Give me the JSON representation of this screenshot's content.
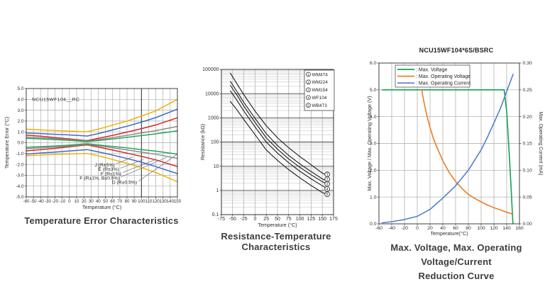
{
  "page": {
    "background": "#ffffff"
  },
  "chart_data": [
    {
      "id": "temp-error",
      "type": "line",
      "caption": "Temperature Error Characteristics",
      "inplot_label": "NCU15WF104__RC",
      "xlabel": "Temperature (°C)",
      "ylabel": "Temperature Error (°C)",
      "xlim": [
        -60,
        150
      ],
      "ylim": [
        -5,
        5
      ],
      "grid": true,
      "legend_position": "in-plot labels with leader lines",
      "xticks": [
        -60,
        -50,
        -40,
        -30,
        -20,
        -10,
        0,
        10,
        20,
        30,
        40,
        50,
        60,
        70,
        80,
        90,
        100,
        110,
        120,
        130,
        140,
        150
      ],
      "xtick_labels": [
        "-60",
        "-50",
        "-40",
        "-30",
        "-20",
        "-10",
        "0",
        "10",
        "20",
        "30",
        "40",
        "50",
        "60",
        "70",
        "80",
        "90",
        "100",
        "110",
        "120",
        "130",
        "140",
        "150"
      ],
      "yticks": [
        5,
        4,
        3,
        2,
        1,
        0,
        -1,
        -2,
        -3,
        -4,
        -5
      ],
      "ytick_labels": [
        "5.0",
        "4.0",
        "3.0",
        "2.0",
        "1.0",
        "0.0",
        "-1.0",
        "-2.0",
        "-3.0",
        "-4.0",
        "-5.0"
      ],
      "refline_x": 100,
      "series": [
        {
          "name": "J (R±5%)",
          "color": "#f3b200",
          "x": [
            -60,
            -40,
            -20,
            0,
            20,
            25,
            40,
            60,
            80,
            100,
            120,
            150
          ],
          "y_upper": [
            1.25,
            1.18,
            1.12,
            1.08,
            1.02,
            1.02,
            1.25,
            1.62,
            2.0,
            2.45,
            2.95,
            4.0
          ],
          "y_lower": [
            -1.2,
            -1.14,
            -1.08,
            -1.04,
            -1.0,
            -1.0,
            -1.2,
            -1.55,
            -1.9,
            -2.3,
            -2.75,
            -3.6
          ]
        },
        {
          "name": "E (R±3%)",
          "color": "#3e6bc9",
          "x": [
            -60,
            -40,
            -20,
            0,
            20,
            25,
            40,
            60,
            80,
            100,
            120,
            150
          ],
          "y_upper": [
            0.9,
            0.84,
            0.78,
            0.72,
            0.64,
            0.62,
            0.84,
            1.18,
            1.52,
            1.9,
            2.32,
            3.1
          ],
          "y_lower": [
            -1.05,
            -0.95,
            -0.86,
            -0.76,
            -0.66,
            -0.64,
            -0.84,
            -1.14,
            -1.46,
            -1.8,
            -2.2,
            -2.85
          ]
        },
        {
          "name": "F (R±1%)",
          "color": "#dc2323",
          "x": [
            -60,
            -40,
            -20,
            0,
            20,
            25,
            40,
            60,
            80,
            100,
            120,
            150
          ],
          "y_upper": [
            0.7,
            0.6,
            0.48,
            0.36,
            0.22,
            0.2,
            0.4,
            0.68,
            0.98,
            1.3,
            1.64,
            2.3
          ],
          "y_lower": [
            -0.75,
            -0.64,
            -0.52,
            -0.38,
            -0.23,
            -0.2,
            -0.4,
            -0.68,
            -0.96,
            -1.26,
            -1.58,
            -2.2
          ]
        },
        {
          "name": "F (R±1%, B±0.5%)",
          "color": "#8c8c8c",
          "x": [
            -60,
            -40,
            -20,
            0,
            20,
            25,
            40,
            60,
            80,
            100,
            120,
            150
          ],
          "y_upper": [
            0.52,
            0.46,
            0.38,
            0.3,
            0.17,
            0.15,
            0.28,
            0.48,
            0.68,
            0.9,
            1.12,
            1.5
          ],
          "y_lower": [
            -0.55,
            -0.48,
            -0.4,
            -0.3,
            -0.17,
            -0.15,
            -0.28,
            -0.48,
            -0.66,
            -0.86,
            -1.06,
            -1.45
          ]
        },
        {
          "name": "D (R±0.5%)",
          "color": "#27a45c",
          "x": [
            -60,
            -40,
            -20,
            0,
            20,
            25,
            40,
            60,
            80,
            100,
            120,
            150
          ],
          "y_upper": [
            0.4,
            0.35,
            0.29,
            0.22,
            0.12,
            0.1,
            0.2,
            0.34,
            0.5,
            0.66,
            0.82,
            1.1
          ],
          "y_lower": [
            -0.42,
            -0.36,
            -0.3,
            -0.22,
            -0.12,
            -0.1,
            -0.2,
            -0.34,
            -0.48,
            -0.64,
            -0.78,
            -1.05
          ]
        }
      ],
      "annotations": [
        {
          "text": "J (R±5%)",
          "label_x": 63,
          "label_y": -2.05,
          "leader": [
            [
              65,
              -1.95
            ],
            [
              88,
              -1.3
            ]
          ]
        },
        {
          "text": "E (R±3%)",
          "label_x": 69,
          "label_y": -2.45,
          "leader": [
            [
              71,
              -2.35
            ],
            [
              103,
              -1.55
            ]
          ]
        },
        {
          "text": "F (R±1%)",
          "label_x": 72,
          "label_y": -2.85,
          "leader": [
            [
              74,
              -2.75
            ],
            [
              120,
              -1.55
            ]
          ]
        },
        {
          "text": "F (R±1%, B±0.5%)",
          "label_x": 70,
          "label_y": -3.25,
          "leader": [
            [
              72,
              -3.15
            ],
            [
              135,
              -1.35
            ]
          ]
        },
        {
          "text": "D (R±0.5%)",
          "label_x": 94,
          "label_y": -3.65,
          "leader": [
            [
              96,
              -3.55
            ],
            [
              150,
              -1.05
            ]
          ]
        }
      ]
    },
    {
      "id": "resistance-temperature",
      "type": "line",
      "ylog": true,
      "caption": "Resistance-Temperature Characteristics",
      "xlabel": "Temperature (°C)",
      "ylabel": "Resistance (kΩ)",
      "xlim": [
        -75,
        175
      ],
      "ylim": [
        0.1,
        100000
      ],
      "grid": true,
      "legend_position": "top-right box",
      "xticks": [
        -75,
        -50,
        -25,
        0,
        25,
        50,
        75,
        100,
        125,
        150,
        175
      ],
      "xtick_labels": [
        "-75",
        "-50",
        "-25",
        "0",
        "25",
        "50",
        "75",
        "100",
        "125",
        "150",
        "175"
      ],
      "yticks": [
        100000,
        10000,
        1000,
        100,
        10,
        1,
        0.1
      ],
      "ytick_labels": [
        "100000",
        "10000",
        "1000",
        "100",
        "10",
        "1",
        "0.1"
      ],
      "line_color": "#1a1a1a",
      "legend": [
        {
          "num": "1",
          "label": "WM474"
        },
        {
          "num": "2",
          "label": "WM224"
        },
        {
          "num": "3",
          "label": "WM154"
        },
        {
          "num": "4",
          "label": "WF104"
        },
        {
          "num": "5",
          "label": "WB473"
        }
      ],
      "series": [
        {
          "name": "WM474",
          "num": "1",
          "x": [
            -55,
            -40,
            -25,
            0,
            25,
            50,
            75,
            100,
            125,
            150,
            155
          ],
          "y": [
            70000,
            25000,
            9000,
            1900,
            470,
            150,
            58,
            25,
            11.5,
            5.2,
            4.7
          ]
        },
        {
          "name": "WM224",
          "num": "2",
          "x": [
            -55,
            -40,
            -25,
            0,
            25,
            50,
            75,
            100,
            125,
            150,
            155
          ],
          "y": [
            32000,
            12000,
            4300,
            950,
            220,
            72,
            28,
            12.5,
            6.0,
            3.0,
            2.7
          ]
        },
        {
          "name": "WM154",
          "num": "3",
          "x": [
            -55,
            -40,
            -25,
            0,
            25,
            50,
            75,
            100,
            125,
            150,
            155
          ],
          "y": [
            22000,
            8500,
            3000,
            650,
            150,
            51,
            20,
            9.0,
            4.4,
            2.3,
            2.1
          ]
        },
        {
          "name": "WF104",
          "num": "4",
          "x": [
            -55,
            -40,
            -25,
            0,
            25,
            50,
            75,
            100,
            125,
            150,
            155
          ],
          "y": [
            13000,
            5200,
            1900,
            420,
            100,
            35,
            14,
            6.2,
            3.0,
            1.55,
            1.4
          ]
        },
        {
          "name": "WB473",
          "num": "5",
          "x": [
            -55,
            -40,
            -25,
            0,
            25,
            50,
            75,
            100,
            125,
            150,
            155
          ],
          "y": [
            4700,
            2100,
            850,
            200,
            47,
            17.5,
            7.2,
            3.3,
            1.6,
            0.82,
            0.75
          ]
        }
      ],
      "end_markers": [
        {
          "num": "1",
          "x": 161,
          "y": 4.6
        },
        {
          "num": "2",
          "x": 161,
          "y": 2.9
        },
        {
          "num": "3",
          "x": 161,
          "y": 1.85
        },
        {
          "num": "4",
          "x": 161,
          "y": 1.15
        },
        {
          "num": "5",
          "x": 161,
          "y": 0.7
        }
      ]
    },
    {
      "id": "reduction-curve",
      "type": "line",
      "title": "NCU15WF104*6S/BSRC",
      "caption_line1": "Max. Voltage, Max. Operating Voltage/Current",
      "caption_line2": "Reduction Curve",
      "xlabel": "Temperature(°C)",
      "ylabel": "Max. Voltage / Max. Operating Voltage (V)",
      "y2label": "Max. Operating Current (mA)",
      "xlim": [
        -60,
        160
      ],
      "ylim": [
        0,
        6
      ],
      "y2lim": [
        0,
        0.3
      ],
      "grid": true,
      "legend_position": "top-left box",
      "xticks": [
        -60,
        -40,
        -20,
        0,
        20,
        40,
        60,
        80,
        100,
        120,
        140,
        160
      ],
      "xtick_labels": [
        "-60",
        "-40",
        "-20",
        "0",
        "20",
        "40",
        "60",
        "80",
        "100",
        "120",
        "140",
        "160"
      ],
      "yticks": [
        0,
        1,
        2,
        3,
        4,
        5,
        6
      ],
      "ytick_labels": [
        "0.0",
        "1.0",
        "2.0",
        "3.0",
        "4.0",
        "5.0",
        "6.0"
      ],
      "y2ticks": [
        0,
        0.05,
        0.1,
        0.15,
        0.2,
        0.25,
        0.3
      ],
      "y2tick_labels": [
        "0.00",
        "0.05",
        "0.10",
        "0.15",
        "0.20",
        "0.25",
        "0.30"
      ],
      "legend": [
        {
          "label": ": Max. Voltage",
          "color": "#12a352"
        },
        {
          "label": ": Max. Operating Voltage",
          "color": "#ef7d23"
        },
        {
          "label": ": Max. Operating Current",
          "color": "#4f81d0"
        }
      ],
      "series": [
        {
          "name": "Max. Voltage",
          "color": "#12a352",
          "x": [
            -55,
            136,
            140,
            144,
            147,
            149.5,
            150
          ],
          "y": [
            5.0,
            5.0,
            4.2,
            2.6,
            1.3,
            0.1,
            0.02
          ]
        },
        {
          "name": "Max. Operating Voltage",
          "color": "#ef7d23",
          "x": [
            7,
            10,
            15,
            20,
            25,
            30,
            40,
            50,
            60,
            70,
            80,
            90,
            100,
            110,
            120,
            130,
            140,
            150
          ],
          "y": [
            5.0,
            4.6,
            4.05,
            3.6,
            3.2,
            2.9,
            2.35,
            1.92,
            1.58,
            1.32,
            1.1,
            0.95,
            0.82,
            0.7,
            0.6,
            0.52,
            0.43,
            0.36
          ]
        },
        {
          "name": "Max. Operating Current",
          "color": "#4f81d0",
          "axis": "right",
          "x": [
            -55,
            -40,
            -20,
            0,
            20,
            40,
            60,
            80,
            100,
            110,
            120,
            130,
            140,
            145,
            150
          ],
          "y": [
            0.002,
            0.004,
            0.008,
            0.014,
            0.027,
            0.048,
            0.071,
            0.1,
            0.138,
            0.162,
            0.188,
            0.215,
            0.247,
            0.263,
            0.279
          ]
        }
      ]
    }
  ]
}
